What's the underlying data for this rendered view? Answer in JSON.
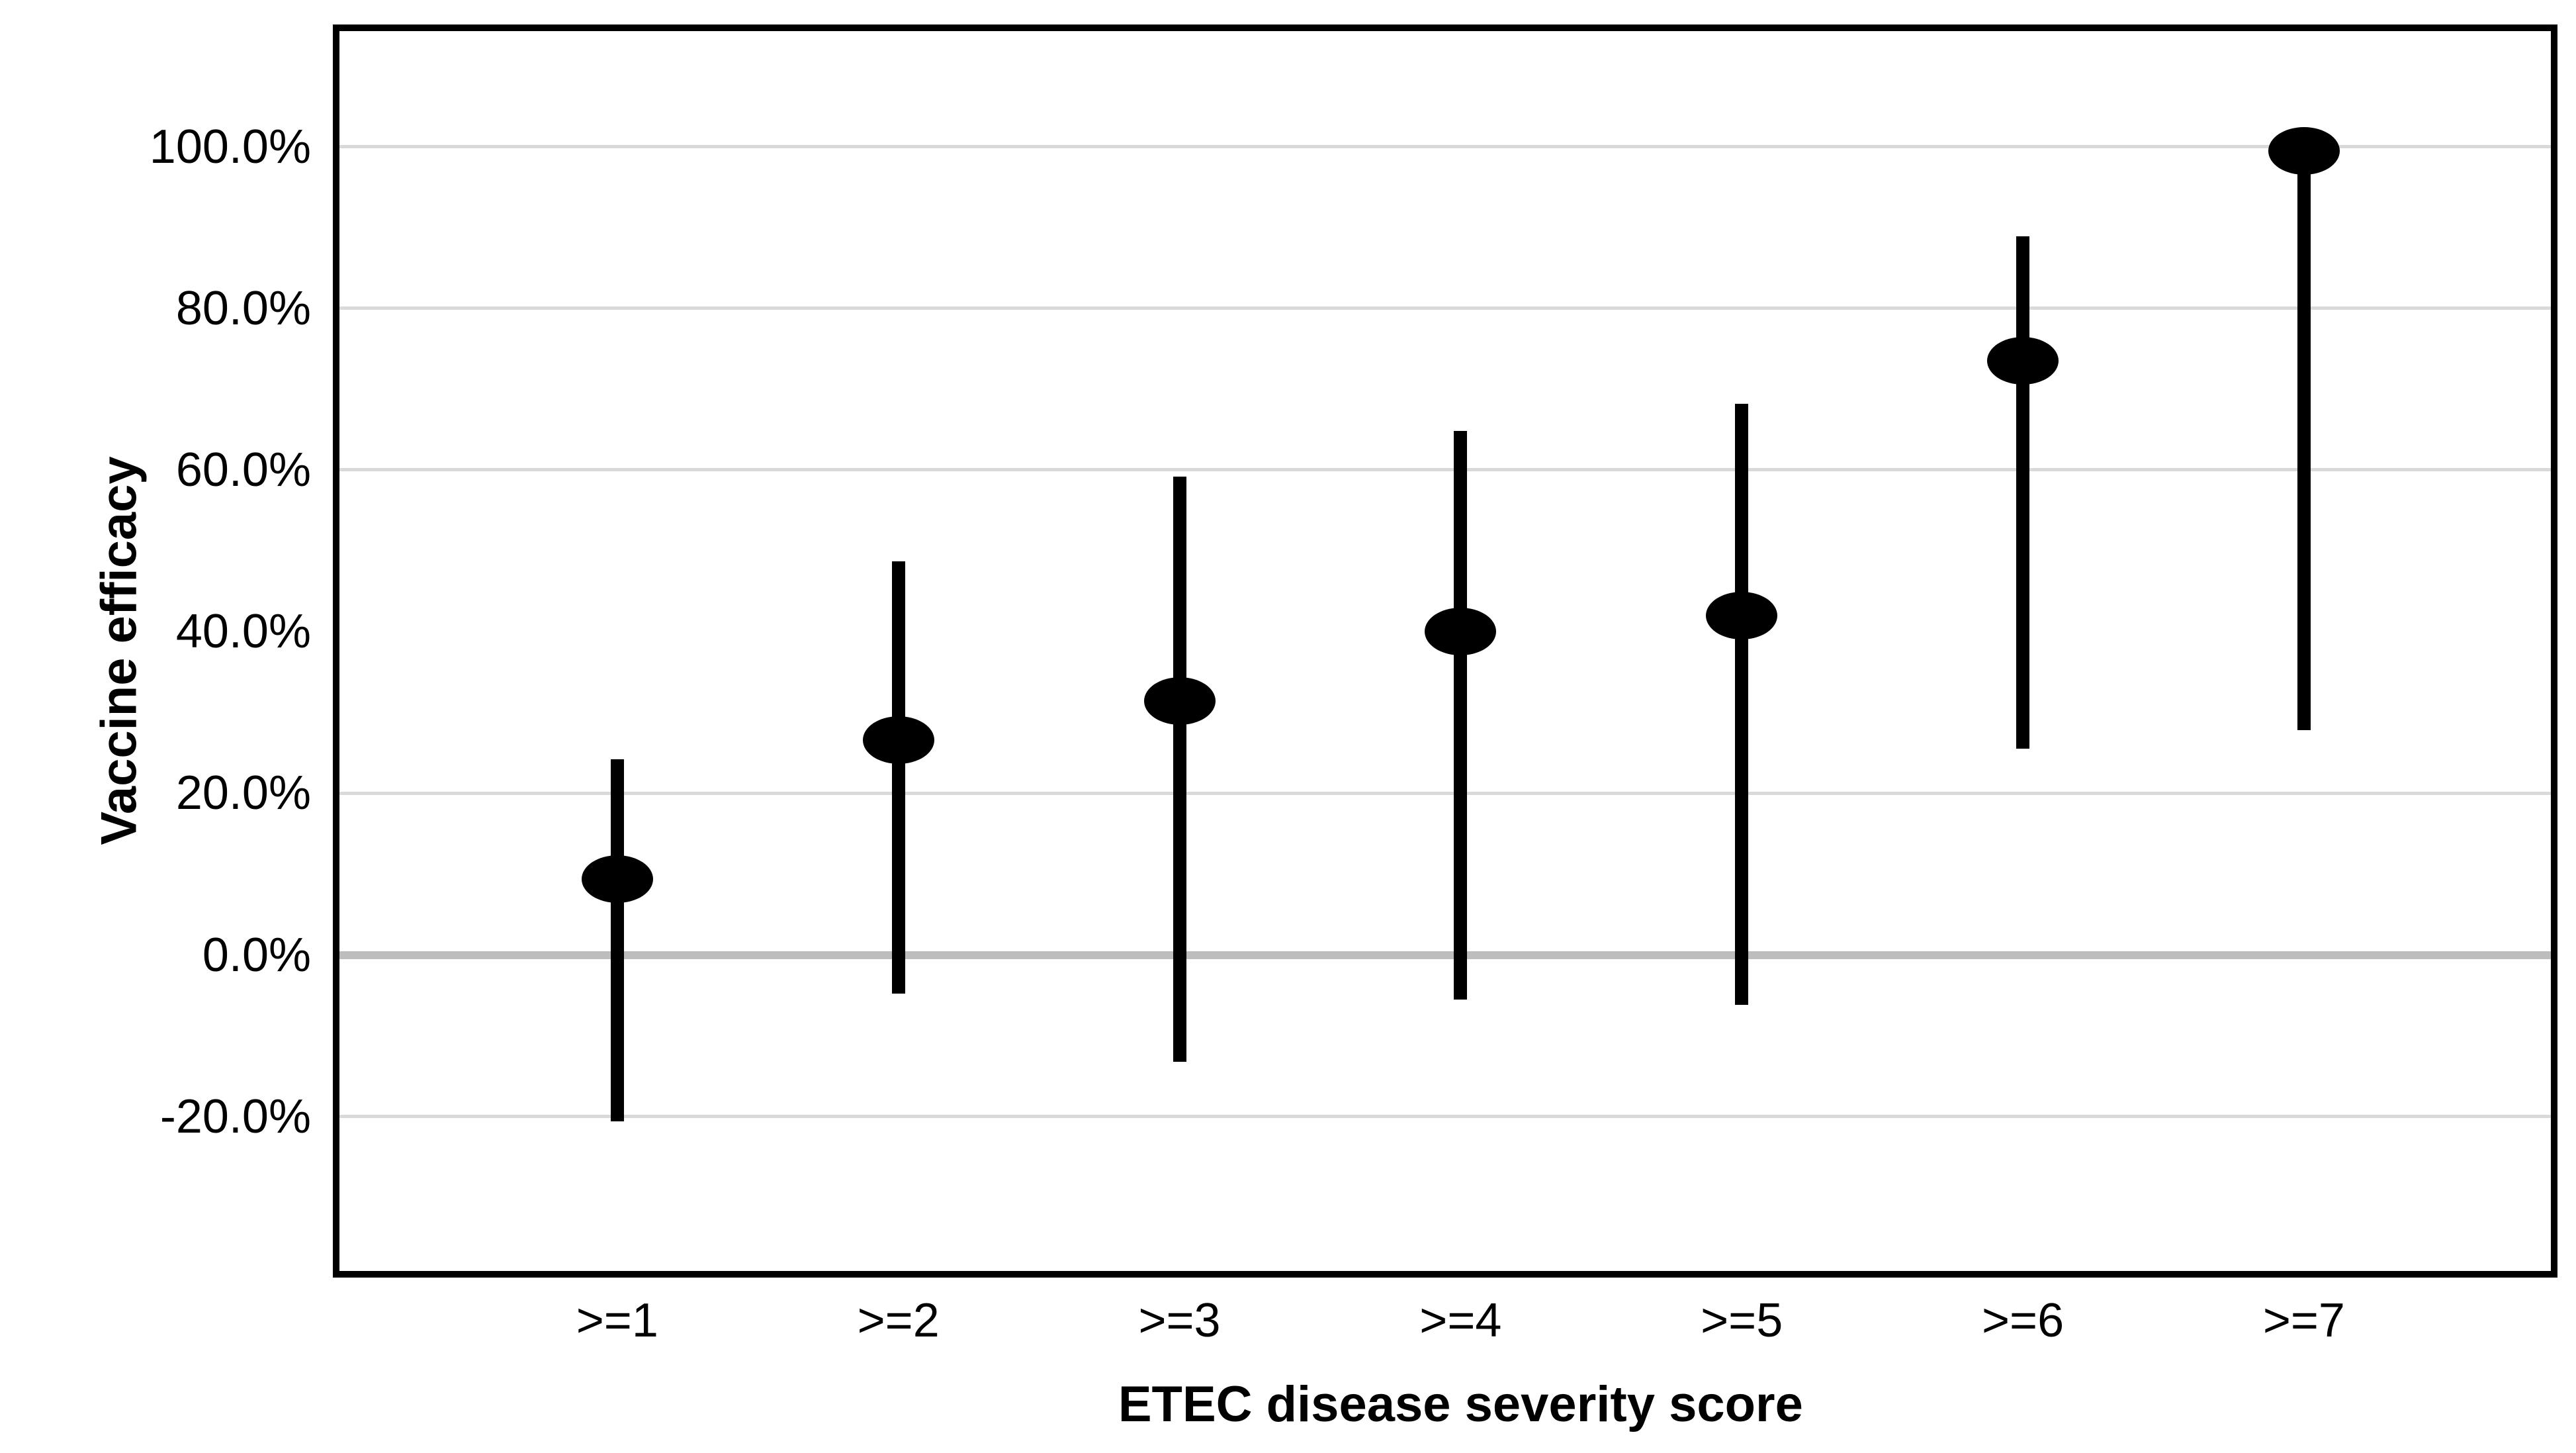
{
  "chart_data": {
    "type": "scatter",
    "title": "",
    "xlabel": "ETEC disease severity score",
    "ylabel": "Vaccine efficacy",
    "categories": [
      ">=1",
      ">=2",
      ">=3",
      ">=4",
      ">=5",
      ">=6",
      ">=7"
    ],
    "points": [
      {
        "category": ">=1",
        "x": 1,
        "estimate": 9.4,
        "ci_lower": -20.6,
        "ci_upper": 24.2
      },
      {
        "category": ">=2",
        "x": 2,
        "estimate": 26.6,
        "ci_lower": -4.8,
        "ci_upper": 48.7
      },
      {
        "category": ">=3",
        "x": 3,
        "estimate": 31.4,
        "ci_lower": -13.2,
        "ci_upper": 59.2
      },
      {
        "category": ">=4",
        "x": 4,
        "estimate": 40.0,
        "ci_lower": -5.5,
        "ci_upper": 64.8
      },
      {
        "category": ">=5",
        "x": 5,
        "estimate": 42.0,
        "ci_lower": -6.2,
        "ci_upper": 68.2
      },
      {
        "category": ">=6",
        "x": 6,
        "estimate": 73.5,
        "ci_lower": 25.5,
        "ci_upper": 88.9
      },
      {
        "category": ">=7",
        "x": 7,
        "estimate": 99.5,
        "ci_lower": 27.8,
        "ci_upper": 100.0
      }
    ],
    "yticks": [
      {
        "value": 100,
        "label": "100.0%"
      },
      {
        "value": 80,
        "label": "80.0%"
      },
      {
        "value": 60,
        "label": "60.0%"
      },
      {
        "value": 40,
        "label": "40.0%"
      },
      {
        "value": 20,
        "label": "20.0%"
      },
      {
        "value": 0,
        "label": "0.0%"
      },
      {
        "value": -20,
        "label": "-20.0%"
      }
    ],
    "gridline_values": [
      100,
      80,
      60,
      20,
      -20
    ],
    "zero_line_value": 0,
    "ylim": [
      -39.5,
      114.7
    ],
    "xlim": [
      0,
      7.89
    ],
    "grid": true,
    "legend": "none",
    "error_bar_caps": false,
    "colors": {
      "marker": "#000000",
      "error_bar": "#000000",
      "gridline": "#d9d9d9",
      "zero_line": "#bdbdbd",
      "border": "#000000",
      "text": "#000000",
      "background": "#ffffff"
    }
  }
}
